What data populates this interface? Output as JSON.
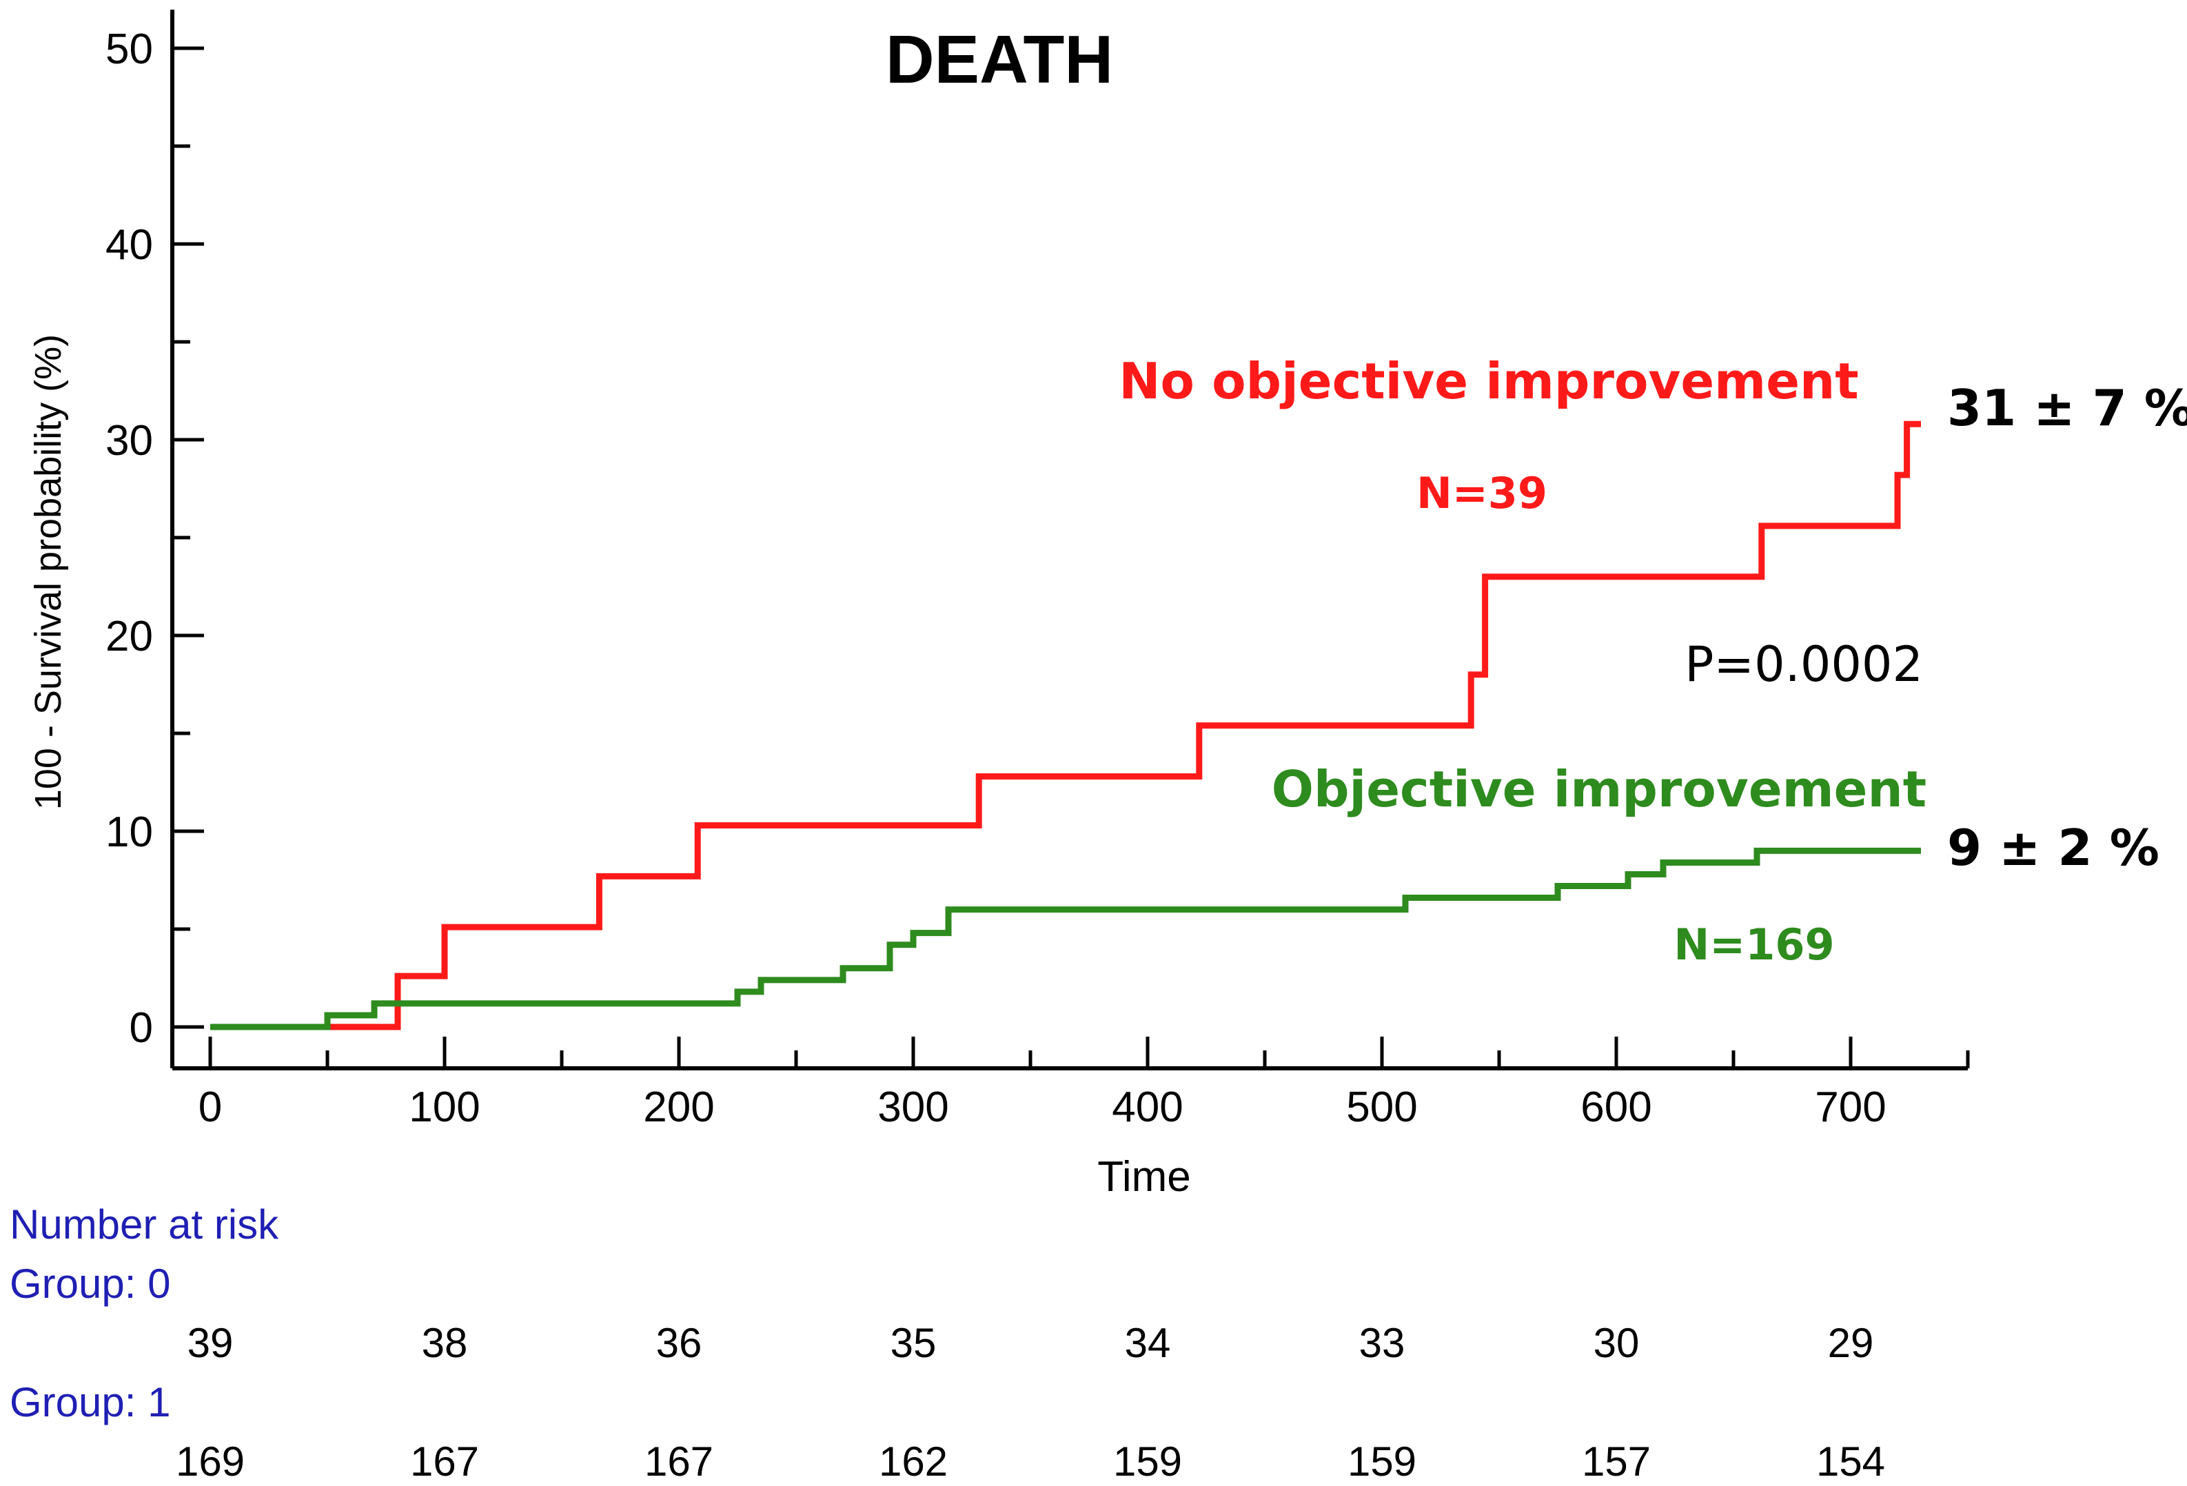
{
  "chart_data": {
    "type": "line",
    "subtype": "kaplan-meier cumulative incidence (step)",
    "title": "DEATH",
    "xlabel": "Time",
    "ylabel": "100 - Survival probability (%)",
    "xlim": [
      0,
      750
    ],
    "ylim": [
      0,
      50
    ],
    "x_ticks": [
      0,
      100,
      200,
      300,
      400,
      500,
      600,
      700
    ],
    "y_ticks": [
      0,
      10,
      20,
      30,
      40,
      50
    ],
    "grid": false,
    "series": [
      {
        "name": "No objective improvement",
        "n_label": "N=39",
        "end_label": "31 ± 7 %",
        "color": "#ff1a1a",
        "x": [
          0,
          50,
          80,
          100,
          166,
          208,
          328,
          422,
          538,
          544,
          662,
          720,
          724,
          730
        ],
        "values": [
          0,
          0,
          2.6,
          5.1,
          7.7,
          10.3,
          12.8,
          15.4,
          18.0,
          23.0,
          25.6,
          28.2,
          30.8,
          30.8
        ]
      },
      {
        "name": "Objective improvement",
        "n_label": "N=169",
        "end_label": "9 ± 2 %",
        "color": "#2e8b1e",
        "x": [
          0,
          50,
          70,
          225,
          235,
          270,
          290,
          300,
          315,
          510,
          575,
          605,
          620,
          660,
          730
        ],
        "values": [
          0,
          0.6,
          1.2,
          1.8,
          2.4,
          3.0,
          4.2,
          4.8,
          6.0,
          6.6,
          7.2,
          7.8,
          8.4,
          9.0,
          9.0
        ]
      }
    ],
    "annotations": [
      {
        "text": "P=0.0002"
      }
    ],
    "risk_table": {
      "title": "Number at risk",
      "times": [
        0,
        100,
        200,
        300,
        400,
        500,
        600,
        700
      ],
      "groups": [
        {
          "label": "Group: 0",
          "counts": [
            "39",
            "38",
            "36",
            "35",
            "34",
            "33",
            "30",
            "29"
          ]
        },
        {
          "label": "Group: 1",
          "counts": [
            "169",
            "167",
            "167",
            "162",
            "159",
            "159",
            "157",
            "154"
          ]
        }
      ]
    }
  }
}
